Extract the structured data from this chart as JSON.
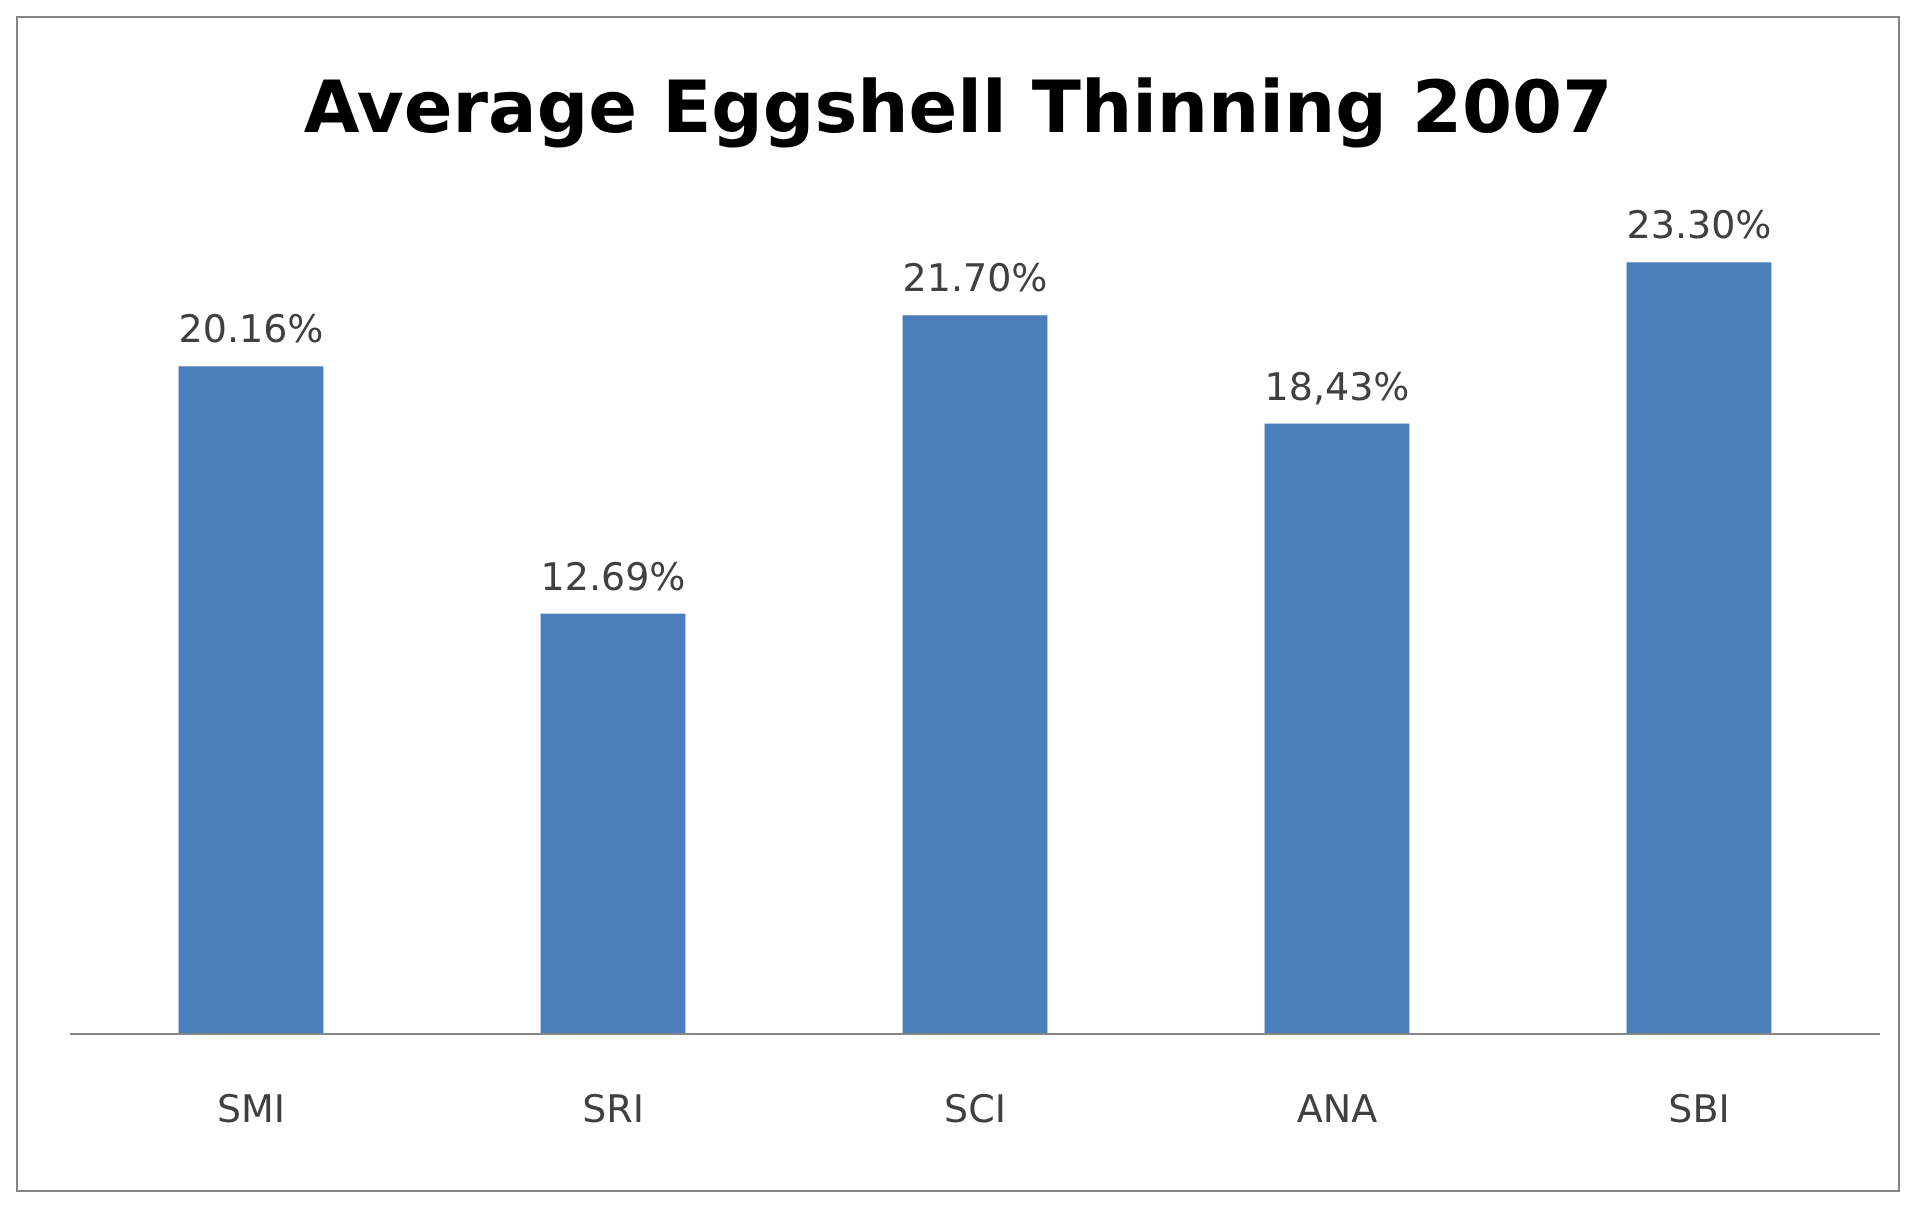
{
  "chart_data": {
    "type": "bar",
    "title": "Average Eggshell Thinning 2007",
    "categories": [
      "SMI",
      "SRI",
      "SCI",
      "ANA",
      "SBI"
    ],
    "values": [
      20.16,
      12.69,
      21.7,
      18.43,
      23.3
    ],
    "value_labels": [
      "20.16%",
      "12.69%",
      "21.70%",
      "18,43%",
      "23.30%"
    ],
    "color": "#4a7ebb"
  }
}
